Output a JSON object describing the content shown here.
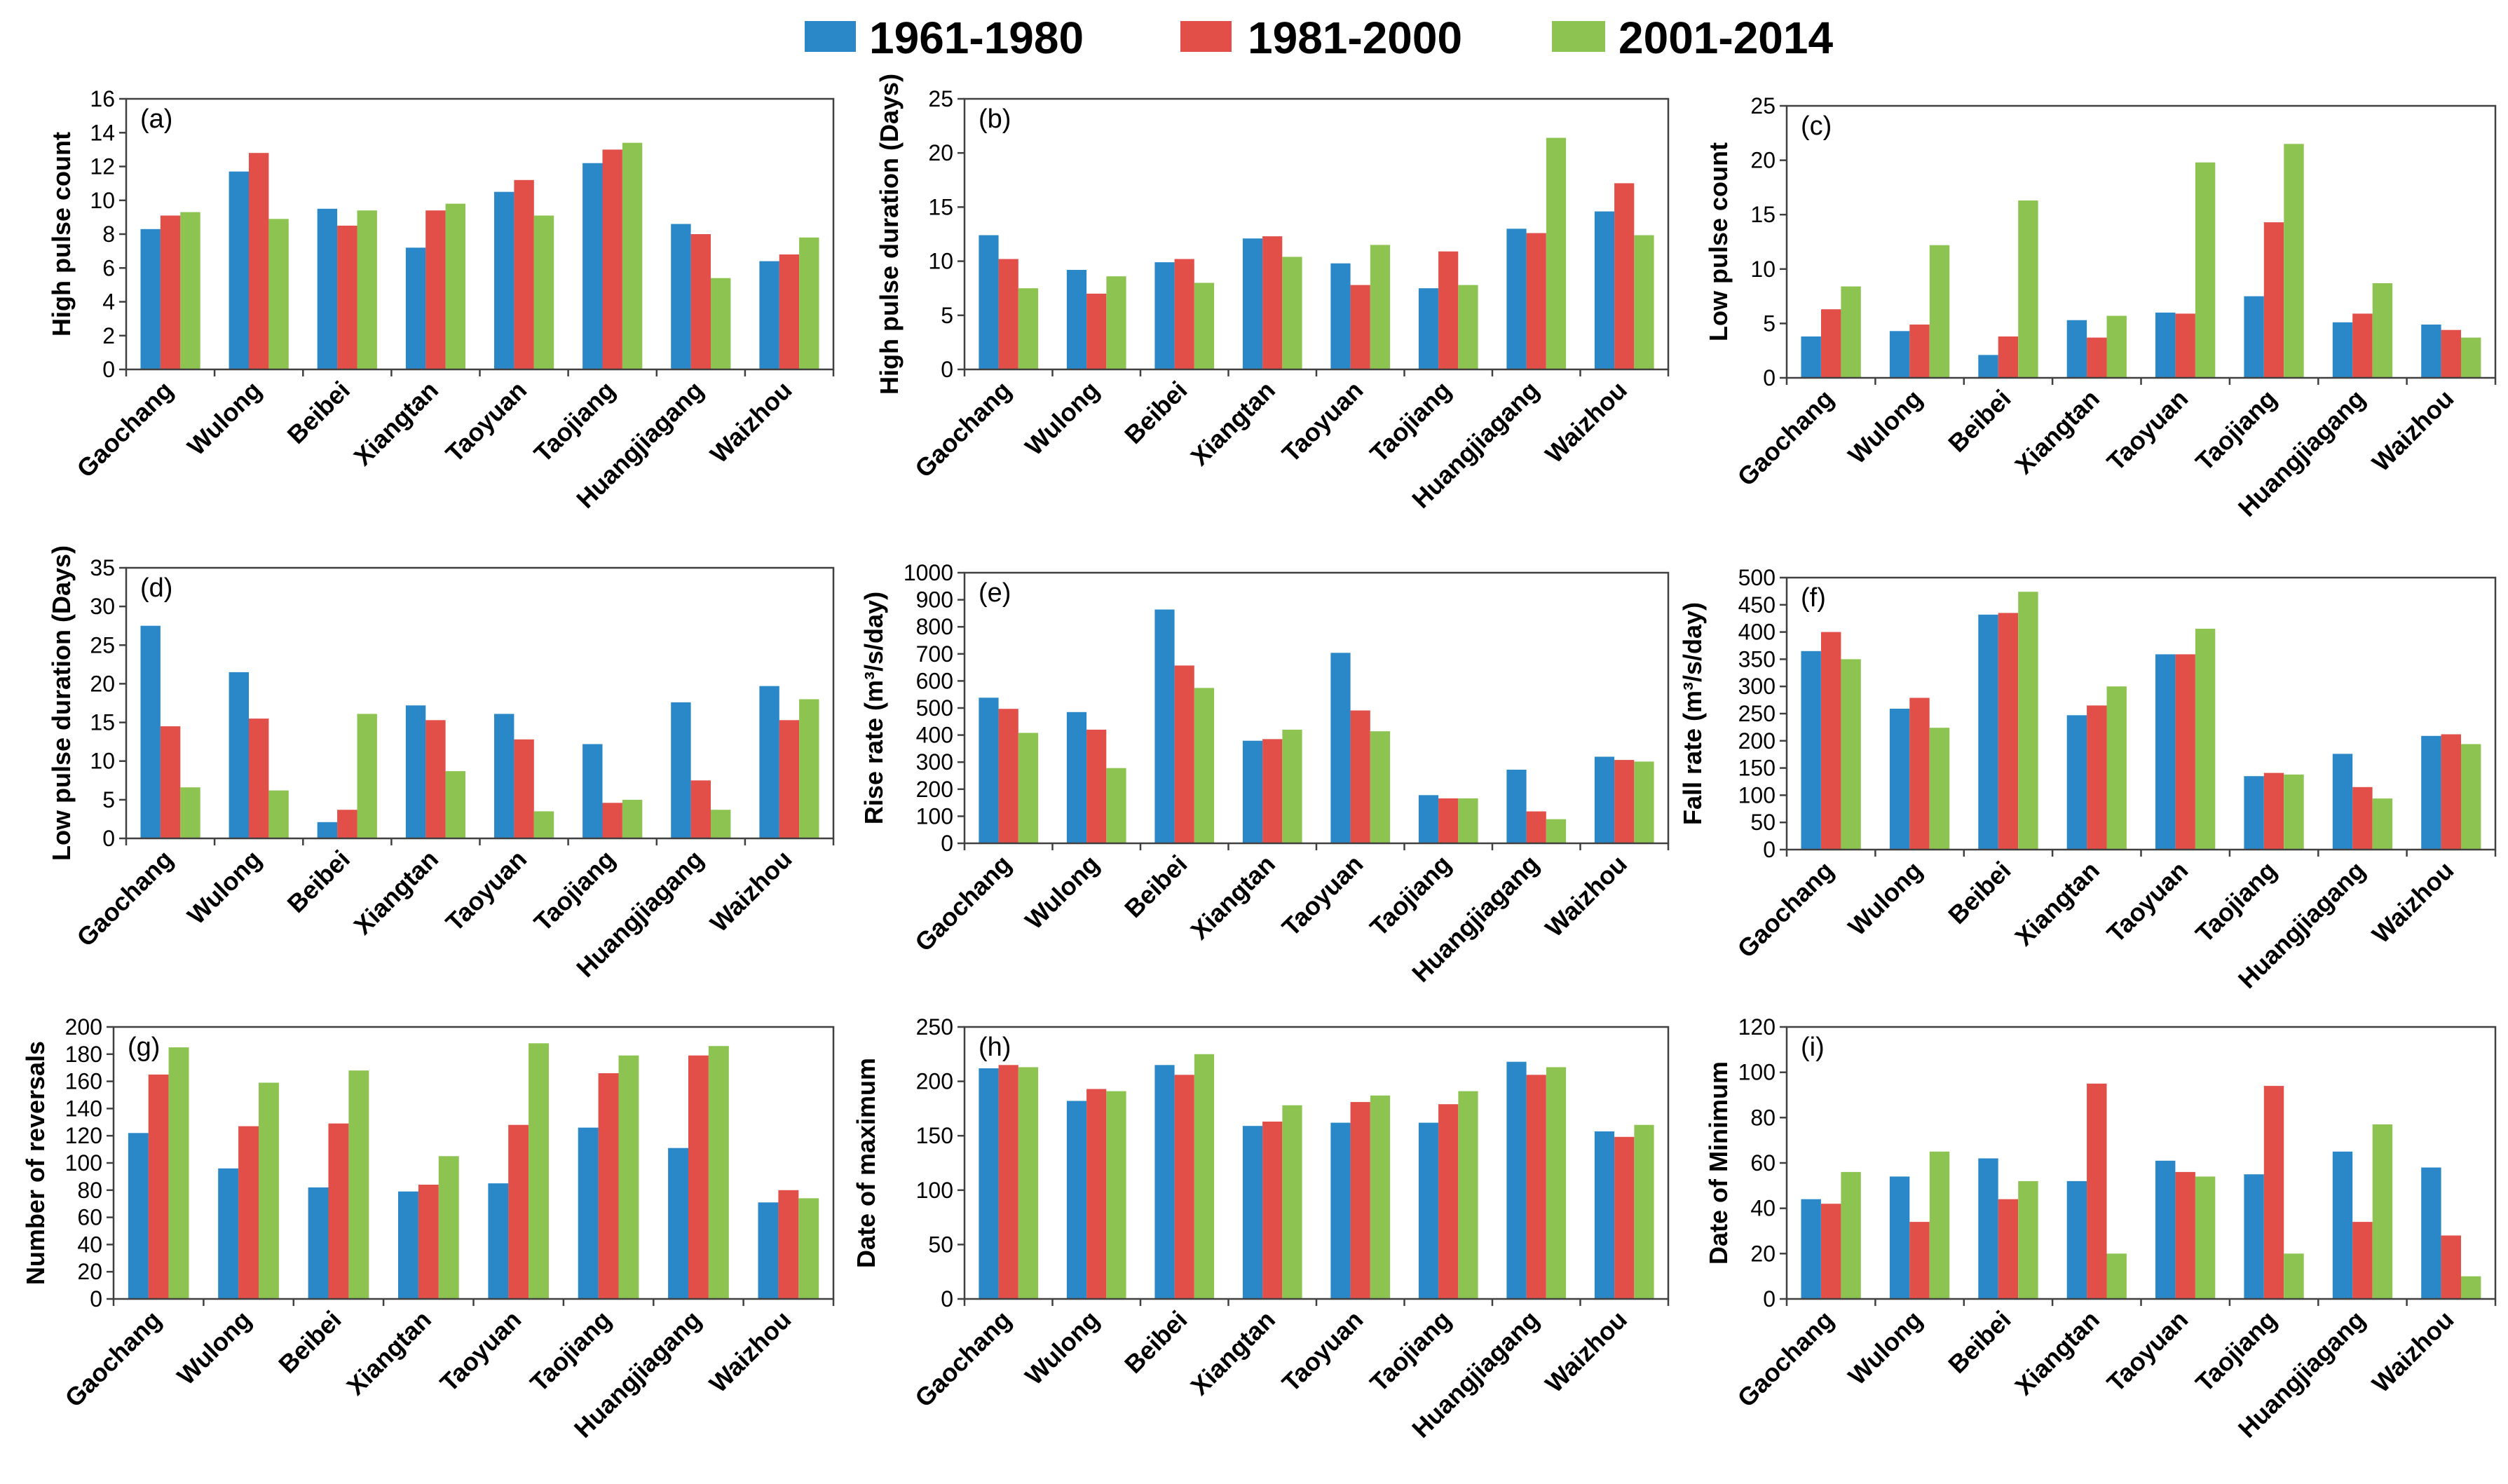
{
  "legend": {
    "items": [
      {
        "label": "1961-1980",
        "color": "#2a88c9"
      },
      {
        "label": "1981-2000",
        "color": "#e24e48"
      },
      {
        "label": "2001-2014",
        "color": "#8dc451"
      }
    ]
  },
  "chart_data": [
    {
      "type": "bar",
      "panel_label": "(a)",
      "ylabel": "High pulse count",
      "categories": [
        "Gaochang",
        "Wulong",
        "Beibei",
        "Xiangtan",
        "Taoyuan",
        "Taojiang",
        "Huangjiagang",
        "Waizhou"
      ],
      "ylim": [
        0,
        16
      ],
      "yticks": [
        0,
        2,
        4,
        6,
        8,
        10,
        12,
        14,
        16
      ],
      "series": [
        {
          "name": "1961-1980",
          "values": [
            8.3,
            11.7,
            9.5,
            7.2,
            10.5,
            12.2,
            8.6,
            6.4
          ]
        },
        {
          "name": "1981-2000",
          "values": [
            9.1,
            12.8,
            8.5,
            9.4,
            11.2,
            13.0,
            8.0,
            6.8
          ]
        },
        {
          "name": "2001-2014",
          "values": [
            9.3,
            8.9,
            9.4,
            9.8,
            9.1,
            13.4,
            5.4,
            7.8
          ]
        }
      ]
    },
    {
      "type": "bar",
      "panel_label": "(b)",
      "ylabel": "High pulse duration (Days)",
      "categories": [
        "Gaochang",
        "Wulong",
        "Beibei",
        "Xiangtan",
        "Taoyuan",
        "Taojiang",
        "Huangjiagang",
        "Waizhou"
      ],
      "ylim": [
        0,
        25
      ],
      "yticks": [
        0,
        5,
        10,
        15,
        20,
        25
      ],
      "series": [
        {
          "name": "1961-1980",
          "values": [
            12.4,
            9.2,
            9.9,
            12.1,
            9.8,
            7.5,
            13.0,
            14.6
          ]
        },
        {
          "name": "1981-2000",
          "values": [
            10.2,
            7.0,
            10.2,
            12.3,
            7.8,
            10.9,
            12.6,
            17.2
          ]
        },
        {
          "name": "2001-2014",
          "values": [
            7.5,
            8.6,
            8.0,
            10.4,
            11.5,
            7.8,
            21.4,
            12.4
          ]
        }
      ]
    },
    {
      "type": "bar",
      "panel_label": "(c)",
      "ylabel": "Low pulse count",
      "categories": [
        "Gaochang",
        "Wulong",
        "Beibei",
        "Xiangtan",
        "Taoyuan",
        "Taojiang",
        "Huangjiagang",
        "Waizhou"
      ],
      "ylim": [
        0,
        25
      ],
      "yticks": [
        0,
        5,
        10,
        15,
        20,
        25
      ],
      "series": [
        {
          "name": "1961-1980",
          "values": [
            3.8,
            4.3,
            2.1,
            5.3,
            6.0,
            7.5,
            5.1,
            4.9
          ]
        },
        {
          "name": "1981-2000",
          "values": [
            6.3,
            4.9,
            3.8,
            3.7,
            5.9,
            14.3,
            5.9,
            4.4
          ]
        },
        {
          "name": "2001-2014",
          "values": [
            8.4,
            12.2,
            16.3,
            5.7,
            19.8,
            21.5,
            8.7,
            3.7
          ]
        }
      ]
    },
    {
      "type": "bar",
      "panel_label": "(d)",
      "ylabel": "Low pulse duration (Days)",
      "categories": [
        "Gaochang",
        "Wulong",
        "Beibei",
        "Xiangtan",
        "Taoyuan",
        "Taojiang",
        "Huangjiagang",
        "Waizhou"
      ],
      "ylim": [
        0,
        35
      ],
      "yticks": [
        0,
        5,
        10,
        15,
        20,
        25,
        30,
        35
      ],
      "series": [
        {
          "name": "1961-1980",
          "values": [
            27.5,
            21.5,
            2.1,
            17.2,
            16.1,
            12.2,
            17.6,
            19.7
          ]
        },
        {
          "name": "1981-2000",
          "values": [
            14.5,
            15.5,
            3.7,
            15.3,
            12.8,
            4.6,
            7.5,
            15.3
          ]
        },
        {
          "name": "2001-2014",
          "values": [
            6.6,
            6.2,
            16.1,
            8.7,
            3.5,
            5.0,
            3.7,
            18.0
          ]
        }
      ]
    },
    {
      "type": "bar",
      "panel_label": "(e)",
      "ylabel": "Rise rate (m³/s/day)",
      "categories": [
        "Gaochang",
        "Wulong",
        "Beibei",
        "Xiangtan",
        "Taoyuan",
        "Taojiang",
        "Huangjiagang",
        "Waizhou"
      ],
      "ylim": [
        0,
        1000
      ],
      "yticks": [
        0,
        100,
        200,
        300,
        400,
        500,
        600,
        700,
        800,
        900,
        1000
      ],
      "series": [
        {
          "name": "1961-1980",
          "values": [
            538,
            485,
            864,
            379,
            704,
            178,
            272,
            320
          ]
        },
        {
          "name": "1981-2000",
          "values": [
            497,
            420,
            657,
            385,
            491,
            166,
            118,
            308
          ]
        },
        {
          "name": "2001-2014",
          "values": [
            408,
            278,
            574,
            420,
            414,
            166,
            89,
            302
          ]
        }
      ]
    },
    {
      "type": "bar",
      "panel_label": "(f)",
      "ylabel": "Fall rate (m³/s/day)",
      "categories": [
        "Gaochang",
        "Wulong",
        "Beibei",
        "Xiangtan",
        "Taoyuan",
        "Taojiang",
        "Huangjiagang",
        "Waizhou"
      ],
      "ylim": [
        0,
        500
      ],
      "yticks": [
        0,
        50,
        100,
        150,
        200,
        250,
        300,
        350,
        400,
        450,
        500
      ],
      "series": [
        {
          "name": "1961-1980",
          "values": [
            365,
            259,
            432,
            247,
            359,
            135,
            176,
            209
          ]
        },
        {
          "name": "1981-2000",
          "values": [
            400,
            279,
            435,
            265,
            359,
            141,
            115,
            212
          ]
        },
        {
          "name": "2001-2014",
          "values": [
            350,
            224,
            474,
            300,
            406,
            138,
            94,
            194
          ]
        }
      ]
    },
    {
      "type": "bar",
      "panel_label": "(g)",
      "ylabel": "Number of reversals",
      "categories": [
        "Gaochang",
        "Wulong",
        "Beibei",
        "Xiangtan",
        "Taoyuan",
        "Taojiang",
        "Huangjiagang",
        "Waizhou"
      ],
      "ylim": [
        0,
        200
      ],
      "yticks": [
        0,
        20,
        40,
        60,
        80,
        100,
        120,
        140,
        160,
        180,
        200
      ],
      "series": [
        {
          "name": "1961-1980",
          "values": [
            122,
            96,
            82,
            79,
            85,
            126,
            111,
            71
          ]
        },
        {
          "name": "1981-2000",
          "values": [
            165,
            127,
            129,
            84,
            128,
            166,
            179,
            80
          ]
        },
        {
          "name": "2001-2014",
          "values": [
            185,
            159,
            168,
            105,
            188,
            179,
            186,
            74
          ]
        }
      ]
    },
    {
      "type": "bar",
      "panel_label": "(h)",
      "ylabel": "Date of maximum",
      "categories": [
        "Gaochang",
        "Wulong",
        "Beibei",
        "Xiangtan",
        "Taoyuan",
        "Taojiang",
        "Huangjiagang",
        "Waizhou"
      ],
      "ylim": [
        0,
        250
      ],
      "yticks": [
        0,
        50,
        100,
        150,
        200,
        250
      ],
      "series": [
        {
          "name": "1961-1980",
          "values": [
            212,
            182,
            215,
            159,
            162,
            162,
            218,
            154
          ]
        },
        {
          "name": "1981-2000",
          "values": [
            215,
            193,
            206,
            163,
            181,
            179,
            206,
            149
          ]
        },
        {
          "name": "2001-2014",
          "values": [
            213,
            191,
            225,
            178,
            187,
            191,
            213,
            160
          ]
        }
      ]
    },
    {
      "type": "bar",
      "panel_label": "(i)",
      "ylabel": "Date of Minimum",
      "categories": [
        "Gaochang",
        "Wulong",
        "Beibei",
        "Xiangtan",
        "Taoyuan",
        "Taojiang",
        "Huangjiagang",
        "Waizhou"
      ],
      "ylim": [
        0,
        120
      ],
      "yticks": [
        0,
        20,
        40,
        60,
        80,
        100,
        120
      ],
      "series": [
        {
          "name": "1961-1980",
          "values": [
            44,
            54,
            62,
            52,
            61,
            55,
            65,
            58
          ]
        },
        {
          "name": "1981-2000",
          "values": [
            42,
            34,
            44,
            95,
            56,
            94,
            34,
            28
          ]
        },
        {
          "name": "2001-2014",
          "values": [
            56,
            65,
            52,
            20,
            54,
            20,
            77,
            10
          ]
        }
      ]
    }
  ]
}
